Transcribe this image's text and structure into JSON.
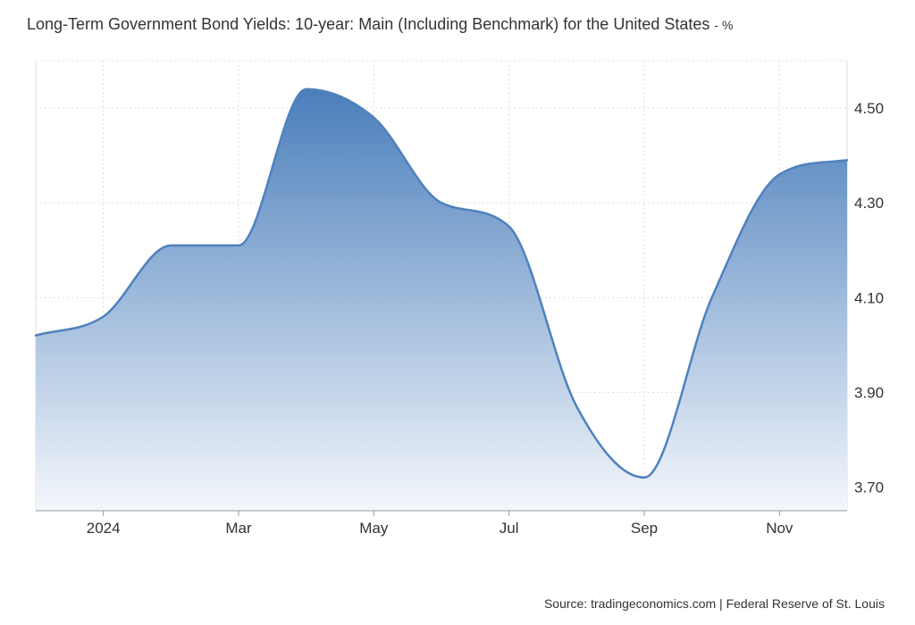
{
  "chart_data": {
    "type": "area",
    "title": "Long-Term Government Bond Yields: 10-year: Main (Including Benchmark) for the United States",
    "unit": "%",
    "x": [
      "2023-12",
      "2024-01",
      "2024-02",
      "2024-03",
      "2024-04",
      "2024-05",
      "2024-06",
      "2024-07",
      "2024-08",
      "2024-09",
      "2024-10",
      "2024-11",
      "2024-12"
    ],
    "values": [
      4.02,
      4.06,
      4.21,
      4.21,
      4.54,
      4.48,
      4.3,
      4.25,
      3.87,
      3.72,
      4.1,
      4.36,
      4.39
    ],
    "x_tick_labels": [
      "2024",
      "Mar",
      "May",
      "Jul",
      "Sep",
      "Nov"
    ],
    "x_tick_dates": [
      "2024-01",
      "2024-03",
      "2024-05",
      "2024-07",
      "2024-09",
      "2024-11"
    ],
    "y_ticks": [
      3.7,
      3.9,
      4.1,
      4.3,
      4.5
    ],
    "y_tick_labels": [
      "3.70",
      "3.90",
      "4.10",
      "4.30",
      "4.50"
    ],
    "ylim": [
      3.65,
      4.6
    ],
    "y_axis_side": "right",
    "grid": true,
    "line_color": "#4f81bd",
    "fill_top_color": "#4a7ebb",
    "fill_bottom_color": "#f4f7fc"
  },
  "title_unit_suffix": "- %",
  "source": "Source: tradingeconomics.com | Federal Reserve of St. Louis"
}
